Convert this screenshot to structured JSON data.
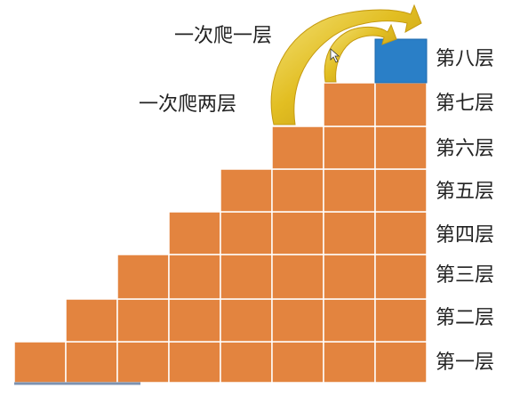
{
  "captions": {
    "climb_one": "一次爬一层",
    "climb_two": "一次爬两层"
  },
  "floors": [
    "第一层",
    "第二层",
    "第三层",
    "第四层",
    "第五层",
    "第六层",
    "第七层",
    "第八层"
  ],
  "staircase": {
    "rows": [
      {
        "level": 1,
        "blocks": 8
      },
      {
        "level": 2,
        "blocks": 7
      },
      {
        "level": 3,
        "blocks": 6
      },
      {
        "level": 4,
        "blocks": 5
      },
      {
        "level": 5,
        "blocks": 4
      },
      {
        "level": 6,
        "blocks": 3
      },
      {
        "level": 7,
        "blocks": 2
      },
      {
        "level": 8,
        "blocks": 1,
        "highlight": true
      }
    ]
  },
  "colors": {
    "step": "#E3843F",
    "step_border": "#ffffff",
    "top_step": "#2A7FC7",
    "arrow_fill": "#D9B21C",
    "arrow_edge": "#F2E27A",
    "base_line": "#7C92B0"
  }
}
